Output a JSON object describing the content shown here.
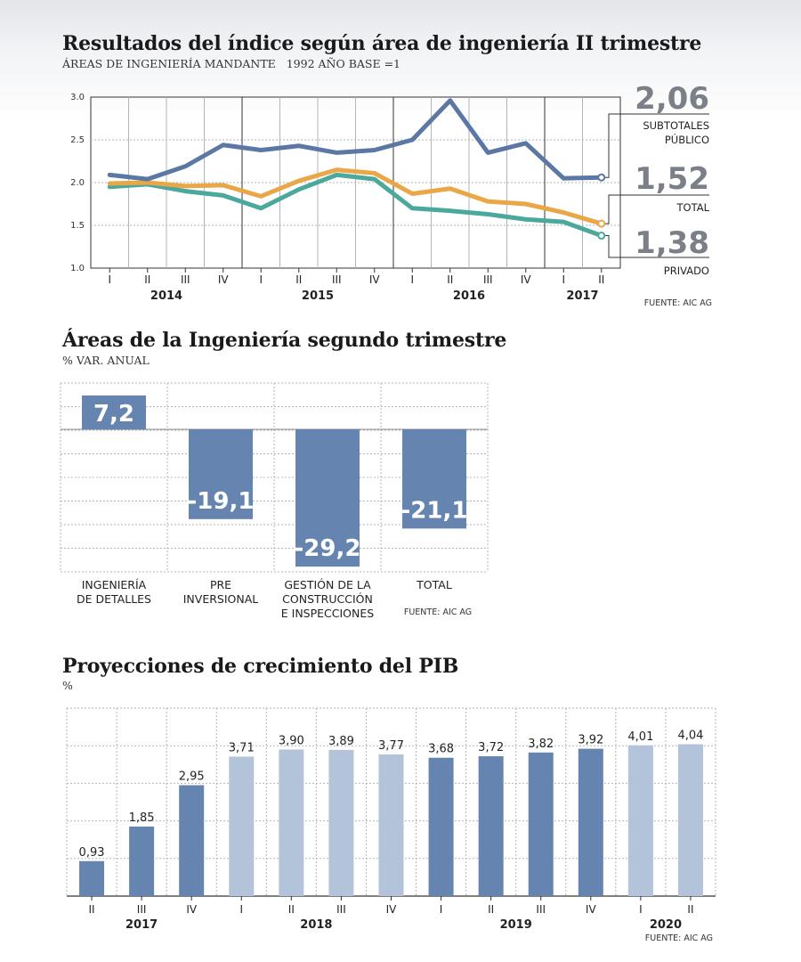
{
  "chart_data": [
    {
      "type": "line",
      "title": "Resultados del índice según área de ingeniería II trimestre",
      "subtitle": "ÁREAS DE INGENIERÍA MANDANTE",
      "subtitle2": "1992 AÑO BASE =1",
      "x_quarters": [
        "I",
        "II",
        "III",
        "IV",
        "I",
        "II",
        "III",
        "IV",
        "I",
        "II",
        "III",
        "IV",
        "I",
        "II"
      ],
      "x_years": [
        {
          "label": "2014",
          "from": 0,
          "to": 3
        },
        {
          "label": "2015",
          "from": 4,
          "to": 7
        },
        {
          "label": "2016",
          "from": 8,
          "to": 11
        },
        {
          "label": "2017",
          "from": 12,
          "to": 13
        }
      ],
      "y_ticks": [
        "1.0",
        "1.5",
        "2.0",
        "2.5",
        "3.0"
      ],
      "ylim": [
        1.0,
        3.0
      ],
      "series": [
        {
          "name": "SUBTOTALES PÚBLICO",
          "end_label": "2,06",
          "color": "#5b78a5",
          "values": [
            2.09,
            2.04,
            2.19,
            2.44,
            2.38,
            2.43,
            2.35,
            2.38,
            2.5,
            2.96,
            2.35,
            2.46,
            2.05,
            2.06
          ]
        },
        {
          "name": "TOTAL",
          "end_label": "1,52",
          "color": "#eaa748",
          "values": [
            1.99,
            2.0,
            1.96,
            1.97,
            1.84,
            2.02,
            2.15,
            2.11,
            1.87,
            1.93,
            1.78,
            1.75,
            1.65,
            1.52
          ]
        },
        {
          "name": "PRIVADO",
          "end_label": "1,38",
          "color": "#4aa89c",
          "values": [
            1.95,
            1.98,
            1.9,
            1.85,
            1.7,
            1.92,
            2.09,
            2.04,
            1.7,
            1.67,
            1.63,
            1.57,
            1.54,
            1.38
          ]
        }
      ],
      "source": "FUENTE: AIC AG"
    },
    {
      "type": "bar",
      "title": "Áreas de la Ingeniería segundo trimestre",
      "subtitle": "% VAR. ANUAL",
      "categories": [
        [
          "INGENIERÍA",
          "DE DETALLES"
        ],
        [
          "PRE",
          "INVERSIONAL"
        ],
        [
          "GESTIÓN DE LA",
          "CONSTRUCCIÓN",
          "E INSPECCIONES"
        ],
        [
          "TOTAL"
        ]
      ],
      "values": [
        7.2,
        -19.1,
        -29.2,
        -21.1
      ],
      "value_labels": [
        "7,2",
        "-19,1",
        "-29,2",
        "-21,1"
      ],
      "color": "#6585b0",
      "source": "FUENTE: AIC AG"
    },
    {
      "type": "bar",
      "title": "Proyecciones de crecimiento del PIB",
      "subtitle": "%",
      "x_quarters": [
        "II",
        "III",
        "IV",
        "I",
        "II",
        "III",
        "IV",
        "I",
        "II",
        "III",
        "IV",
        "I",
        "II"
      ],
      "x_years": [
        {
          "label": "2017",
          "from": 0,
          "to": 2
        },
        {
          "label": "2018",
          "from": 3,
          "to": 6
        },
        {
          "label": "2019",
          "from": 7,
          "to": 10
        },
        {
          "label": "2020",
          "from": 11,
          "to": 12
        }
      ],
      "values": [
        0.93,
        1.85,
        2.95,
        3.71,
        3.9,
        3.89,
        3.77,
        3.68,
        3.72,
        3.82,
        3.92,
        4.01,
        4.04
      ],
      "value_labels": [
        "0,93",
        "1,85",
        "2,95",
        "3,71",
        "3,90",
        "3,89",
        "3,77",
        "3,68",
        "3,72",
        "3,82",
        "3,92",
        "4,01",
        "4,04"
      ],
      "ylim": [
        0,
        5
      ],
      "colors": {
        "dark": "#6585b0",
        "light": "#b3c3da"
      },
      "bar_shade": [
        "dark",
        "dark",
        "dark",
        "light",
        "light",
        "light",
        "light",
        "dark",
        "dark",
        "dark",
        "dark",
        "light",
        "light"
      ],
      "source": "FUENTE: AIC AG"
    }
  ]
}
